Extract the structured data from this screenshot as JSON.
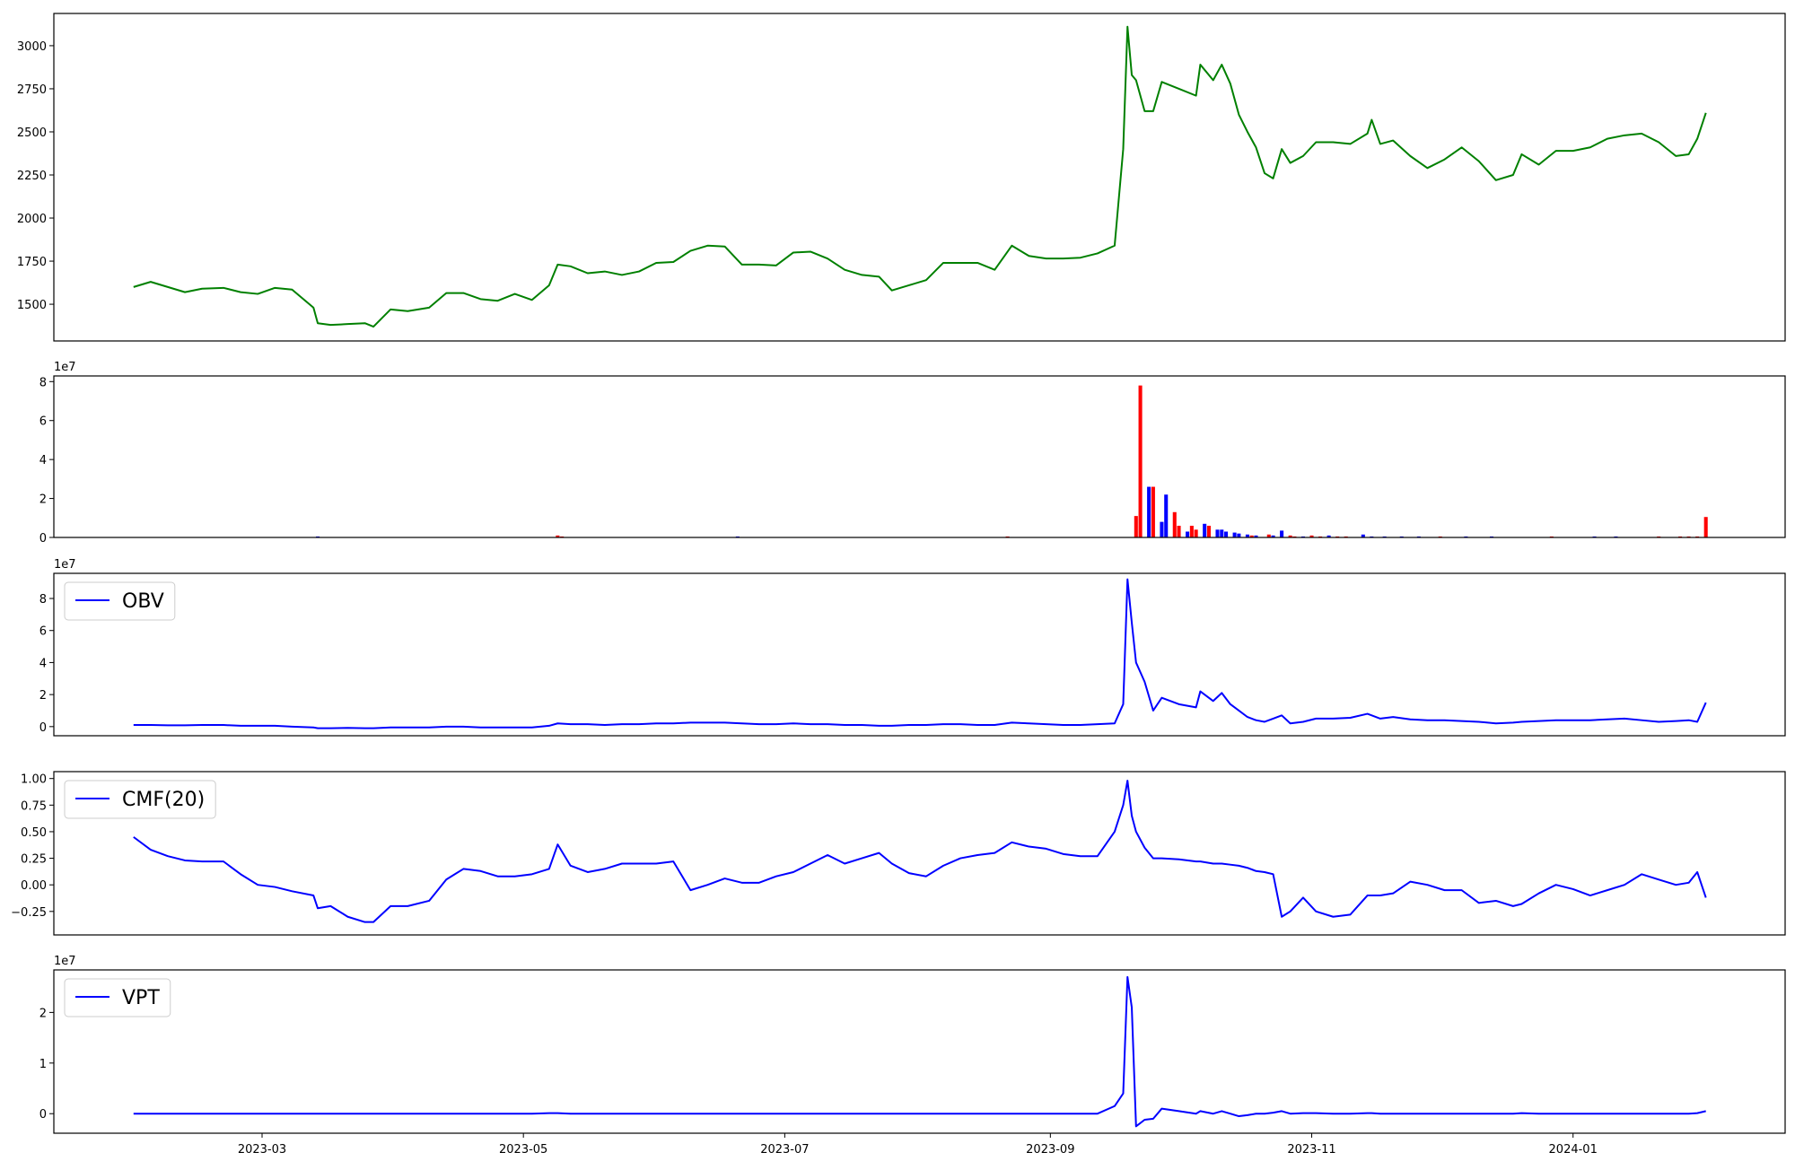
{
  "chart_data": [
    {
      "type": "line",
      "xlim": [
        10.4,
        414.5
      ],
      "ylim": [
        1287,
        3187
      ],
      "yticks": [
        1500,
        1750,
        2000,
        2250,
        2500,
        2750,
        3000
      ],
      "x": [
        29,
        33,
        37,
        41,
        45,
        50,
        54,
        58,
        62,
        66,
        71,
        72,
        75,
        79,
        83,
        85,
        89,
        93,
        98,
        102,
        106,
        110,
        114,
        118,
        122,
        126,
        128,
        131,
        135,
        139,
        143,
        147,
        151,
        155,
        159,
        163,
        167,
        171,
        175,
        179,
        183,
        187,
        191,
        195,
        199,
        203,
        206,
        210,
        214,
        218,
        222,
        226,
        230,
        234,
        238,
        242,
        246,
        250,
        254,
        258,
        260,
        261,
        262,
        263,
        265,
        267,
        269,
        273,
        277,
        278,
        281,
        283,
        285,
        287,
        289,
        291,
        293,
        295,
        297,
        299,
        302,
        305,
        309,
        313,
        317,
        318,
        320,
        323,
        327,
        331,
        335,
        339,
        343,
        347,
        351,
        353,
        357,
        361,
        365,
        369,
        373,
        377,
        381,
        385,
        389,
        392,
        394,
        396
      ],
      "series": [
        {
          "color": "#008000",
          "values": [
            1600,
            1630,
            1600,
            1570,
            1590,
            1595,
            1570,
            1560,
            1595,
            1585,
            1480,
            1390,
            1380,
            1385,
            1390,
            1370,
            1470,
            1460,
            1480,
            1565,
            1565,
            1530,
            1520,
            1560,
            1525,
            1610,
            1730,
            1720,
            1680,
            1690,
            1670,
            1690,
            1740,
            1745,
            1810,
            1840,
            1835,
            1730,
            1730,
            1725,
            1800,
            1805,
            1765,
            1700,
            1670,
            1660,
            1580,
            1610,
            1640,
            1740,
            1740,
            1740,
            1700,
            1840,
            1780,
            1765,
            1765,
            1770,
            1795,
            1840,
            2400,
            3110,
            2830,
            2800,
            2620,
            2620,
            2790,
            2750,
            2710,
            2890,
            2800,
            2890,
            2780,
            2600,
            2500,
            2410,
            2260,
            2230,
            2400,
            2320,
            2360,
            2440,
            2440,
            2430,
            2490,
            2570,
            2430,
            2450,
            2360,
            2290,
            2340,
            2410,
            2330,
            2220,
            2250,
            2370,
            2310,
            2390,
            2390,
            2410,
            2460,
            2480,
            2490,
            2440,
            2360,
            2370,
            2460,
            2610
          ]
        }
      ]
    },
    {
      "type": "bar",
      "xlim": [
        10.4,
        414.5
      ],
      "ylim": [
        0,
        8.29
      ],
      "yticks": [
        0,
        2,
        4,
        6,
        8
      ],
      "offset_label": "1e7",
      "x": [
        72,
        128,
        129,
        170,
        233,
        263,
        264,
        266,
        267,
        269,
        270,
        272,
        273,
        275,
        276,
        277,
        279,
        280,
        282,
        283,
        284,
        286,
        287,
        289,
        290,
        291,
        294,
        295,
        297,
        299,
        300,
        302,
        304,
        306,
        308,
        310,
        312,
        316,
        318,
        321,
        325,
        329,
        334,
        340,
        346,
        360,
        370,
        375,
        385,
        390,
        392,
        394,
        396
      ],
      "values": [
        0.05,
        0.1,
        0.05,
        0.05,
        0.05,
        1.1,
        7.8,
        2.6,
        2.6,
        0.8,
        2.2,
        1.3,
        0.6,
        0.3,
        0.6,
        0.4,
        0.7,
        0.6,
        0.4,
        0.4,
        0.3,
        0.25,
        0.2,
        0.15,
        0.1,
        0.1,
        0.15,
        0.1,
        0.35,
        0.1,
        0.05,
        0.05,
        0.1,
        0.05,
        0.1,
        0.05,
        0.05,
        0.15,
        0.05,
        0.05,
        0.05,
        0.05,
        0.05,
        0.05,
        0.05,
        0.05,
        0.05,
        0.05,
        0.05,
        0.05,
        0.05,
        0.05,
        1.05
      ],
      "colors": [
        "blue",
        "red",
        "red",
        "blue",
        "red",
        "red",
        "red",
        "blue",
        "red",
        "blue",
        "blue",
        "red",
        "red",
        "blue",
        "red",
        "red",
        "blue",
        "red",
        "blue",
        "blue",
        "blue",
        "blue",
        "blue",
        "blue",
        "red",
        "blue",
        "red",
        "blue",
        "blue",
        "red",
        "red",
        "blue",
        "red",
        "red",
        "blue",
        "red",
        "red",
        "blue",
        "blue",
        "blue",
        "blue",
        "blue",
        "red",
        "blue",
        "blue",
        "red",
        "blue",
        "blue",
        "red",
        "red",
        "red",
        "red",
        "red"
      ]
    },
    {
      "type": "line",
      "xlim": [
        10.4,
        414.5
      ],
      "ylim": [
        -0.57,
        9.57
      ],
      "yticks": [
        0,
        2,
        4,
        6,
        8
      ],
      "offset_label": "1e7",
      "legend": "upper left",
      "x": [
        29,
        33,
        37,
        41,
        45,
        50,
        54,
        58,
        62,
        66,
        71,
        72,
        75,
        79,
        83,
        85,
        89,
        93,
        98,
        102,
        106,
        110,
        114,
        118,
        122,
        126,
        128,
        131,
        135,
        139,
        143,
        147,
        151,
        155,
        159,
        163,
        167,
        171,
        175,
        179,
        183,
        187,
        191,
        195,
        199,
        203,
        206,
        210,
        214,
        218,
        222,
        226,
        230,
        234,
        238,
        242,
        246,
        250,
        254,
        258,
        260,
        261,
        262,
        263,
        265,
        267,
        269,
        273,
        277,
        278,
        281,
        283,
        285,
        287,
        289,
        291,
        293,
        295,
        297,
        299,
        302,
        305,
        309,
        313,
        317,
        318,
        320,
        323,
        327,
        331,
        335,
        339,
        343,
        347,
        351,
        353,
        357,
        361,
        365,
        369,
        373,
        377,
        381,
        385,
        389,
        392,
        394,
        396
      ],
      "series": [
        {
          "name": "OBV",
          "color": "#0000ff",
          "values": [
            0.1,
            0.1,
            0.08,
            0.08,
            0.1,
            0.1,
            0.05,
            0.05,
            0.05,
            0.0,
            -0.05,
            -0.1,
            -0.1,
            -0.08,
            -0.1,
            -0.1,
            -0.05,
            -0.05,
            -0.05,
            0.0,
            0.0,
            -0.05,
            -0.05,
            -0.05,
            -0.05,
            0.05,
            0.2,
            0.15,
            0.15,
            0.1,
            0.15,
            0.15,
            0.2,
            0.2,
            0.25,
            0.25,
            0.25,
            0.2,
            0.15,
            0.15,
            0.2,
            0.15,
            0.15,
            0.1,
            0.1,
            0.05,
            0.05,
            0.1,
            0.1,
            0.15,
            0.15,
            0.1,
            0.1,
            0.25,
            0.2,
            0.15,
            0.1,
            0.1,
            0.15,
            0.2,
            1.4,
            9.2,
            6.5,
            4.0,
            2.8,
            1.0,
            1.8,
            1.4,
            1.2,
            2.2,
            1.6,
            2.1,
            1.4,
            1.0,
            0.6,
            0.4,
            0.3,
            0.5,
            0.7,
            0.2,
            0.3,
            0.5,
            0.5,
            0.55,
            0.8,
            0.7,
            0.5,
            0.6,
            0.45,
            0.4,
            0.4,
            0.35,
            0.3,
            0.2,
            0.25,
            0.3,
            0.35,
            0.4,
            0.4,
            0.4,
            0.45,
            0.5,
            0.4,
            0.3,
            0.35,
            0.4,
            0.3,
            1.5
          ]
        }
      ]
    },
    {
      "type": "line",
      "xlim": [
        10.4,
        414.5
      ],
      "ylim": [
        -0.471,
        1.065
      ],
      "legend": "upper left",
      "yticks": [
        {
          "value": -0.25,
          "label": "−0.25"
        },
        {
          "value": 0,
          "label": "0.00"
        },
        {
          "value": 0.25,
          "label": "0.25"
        },
        {
          "value": 0.5,
          "label": "0.50"
        },
        {
          "value": 0.75,
          "label": "0.75"
        },
        {
          "value": 1,
          "label": "1.00"
        }
      ],
      "x": [
        29,
        33,
        37,
        41,
        45,
        50,
        54,
        58,
        62,
        66,
        71,
        72,
        75,
        79,
        83,
        85,
        89,
        93,
        98,
        102,
        106,
        110,
        114,
        118,
        122,
        126,
        128,
        131,
        135,
        139,
        143,
        147,
        151,
        155,
        159,
        163,
        167,
        171,
        175,
        179,
        183,
        187,
        191,
        195,
        199,
        203,
        206,
        210,
        214,
        218,
        222,
        226,
        230,
        234,
        238,
        242,
        246,
        250,
        254,
        258,
        260,
        261,
        262,
        263,
        265,
        267,
        269,
        273,
        277,
        278,
        281,
        283,
        285,
        287,
        289,
        291,
        293,
        295,
        297,
        299,
        302,
        305,
        309,
        313,
        317,
        318,
        320,
        323,
        327,
        331,
        335,
        339,
        343,
        347,
        351,
        353,
        357,
        361,
        365,
        369,
        373,
        377,
        381,
        385,
        389,
        392,
        394,
        396
      ],
      "series": [
        {
          "name": "CMF(20)",
          "color": "#0000ff",
          "values": [
            0.45,
            0.33,
            0.27,
            0.23,
            0.22,
            0.22,
            0.1,
            0.0,
            -0.02,
            -0.06,
            -0.1,
            -0.22,
            -0.2,
            -0.3,
            -0.35,
            -0.35,
            -0.2,
            -0.2,
            -0.15,
            0.05,
            0.15,
            0.13,
            0.08,
            0.08,
            0.1,
            0.15,
            0.38,
            0.18,
            0.12,
            0.15,
            0.2,
            0.2,
            0.2,
            0.22,
            -0.05,
            0.0,
            0.06,
            0.02,
            0.02,
            0.08,
            0.12,
            0.2,
            0.28,
            0.2,
            0.25,
            0.3,
            0.2,
            0.11,
            0.08,
            0.18,
            0.25,
            0.28,
            0.3,
            0.4,
            0.36,
            0.34,
            0.29,
            0.27,
            0.27,
            0.5,
            0.75,
            0.98,
            0.65,
            0.5,
            0.35,
            0.25,
            0.25,
            0.24,
            0.22,
            0.22,
            0.2,
            0.2,
            0.19,
            0.18,
            0.16,
            0.13,
            0.12,
            0.1,
            -0.3,
            -0.25,
            -0.12,
            -0.25,
            -0.3,
            -0.28,
            -0.1,
            -0.1,
            -0.1,
            -0.08,
            0.03,
            0.0,
            -0.05,
            -0.05,
            -0.17,
            -0.15,
            -0.2,
            -0.18,
            -0.08,
            0.0,
            -0.04,
            -0.1,
            -0.05,
            0.0,
            0.1,
            0.05,
            0.0,
            0.02,
            0.12,
            -0.12
          ]
        }
      ]
    },
    {
      "type": "line",
      "xlim": [
        10.4,
        414.5
      ],
      "ylim": [
        -0.386,
        2.84
      ],
      "yticks": [
        0,
        1,
        2
      ],
      "offset_label": "1e7",
      "legend": "upper left",
      "xticks": [
        {
          "value": 59,
          "label": "2023-03"
        },
        {
          "value": 120,
          "label": "2023-05"
        },
        {
          "value": 181,
          "label": "2023-07"
        },
        {
          "value": 243,
          "label": "2023-09"
        },
        {
          "value": 304,
          "label": "2023-11"
        },
        {
          "value": 365,
          "label": "2024-01"
        }
      ],
      "x": [
        29,
        33,
        37,
        41,
        45,
        50,
        54,
        58,
        62,
        66,
        71,
        72,
        75,
        79,
        83,
        85,
        89,
        93,
        98,
        102,
        106,
        110,
        114,
        118,
        122,
        126,
        128,
        131,
        135,
        139,
        143,
        147,
        151,
        155,
        159,
        163,
        167,
        171,
        175,
        179,
        183,
        187,
        191,
        195,
        199,
        203,
        206,
        210,
        214,
        218,
        222,
        226,
        230,
        234,
        238,
        242,
        246,
        250,
        254,
        258,
        260,
        261,
        262,
        263,
        265,
        267,
        269,
        273,
        277,
        278,
        281,
        283,
        285,
        287,
        289,
        291,
        293,
        295,
        297,
        299,
        302,
        305,
        309,
        313,
        317,
        318,
        320,
        323,
        327,
        331,
        335,
        339,
        343,
        347,
        351,
        353,
        357,
        361,
        365,
        369,
        373,
        377,
        381,
        385,
        389,
        392,
        394,
        396
      ],
      "series": [
        {
          "name": "VPT",
          "color": "#0000ff",
          "values": [
            0,
            0,
            0,
            0,
            0,
            0,
            0,
            0,
            0,
            0,
            0,
            0,
            0,
            0,
            0,
            0,
            0,
            0,
            0,
            0,
            0,
            0,
            0,
            0,
            0,
            0.01,
            0.01,
            0,
            0,
            0,
            0,
            0,
            0,
            0,
            0,
            0,
            0,
            0,
            0,
            0,
            0,
            0,
            0,
            0,
            0,
            0,
            0,
            0,
            0,
            0,
            0,
            0,
            0,
            0,
            0,
            0,
            0,
            0,
            0,
            0.15,
            0.4,
            2.7,
            2.1,
            -0.25,
            -0.12,
            -0.1,
            0.1,
            0.05,
            0,
            0.05,
            0,
            0.05,
            0,
            -0.05,
            -0.03,
            0,
            0,
            0.02,
            0.05,
            0,
            0.01,
            0.01,
            0,
            0,
            0.01,
            0.01,
            0,
            0,
            0,
            0,
            0,
            0,
            0,
            0,
            0,
            0.01,
            0,
            0,
            0,
            0,
            0,
            0,
            0,
            0,
            0,
            0,
            0.01,
            0.05
          ]
        }
      ]
    }
  ]
}
